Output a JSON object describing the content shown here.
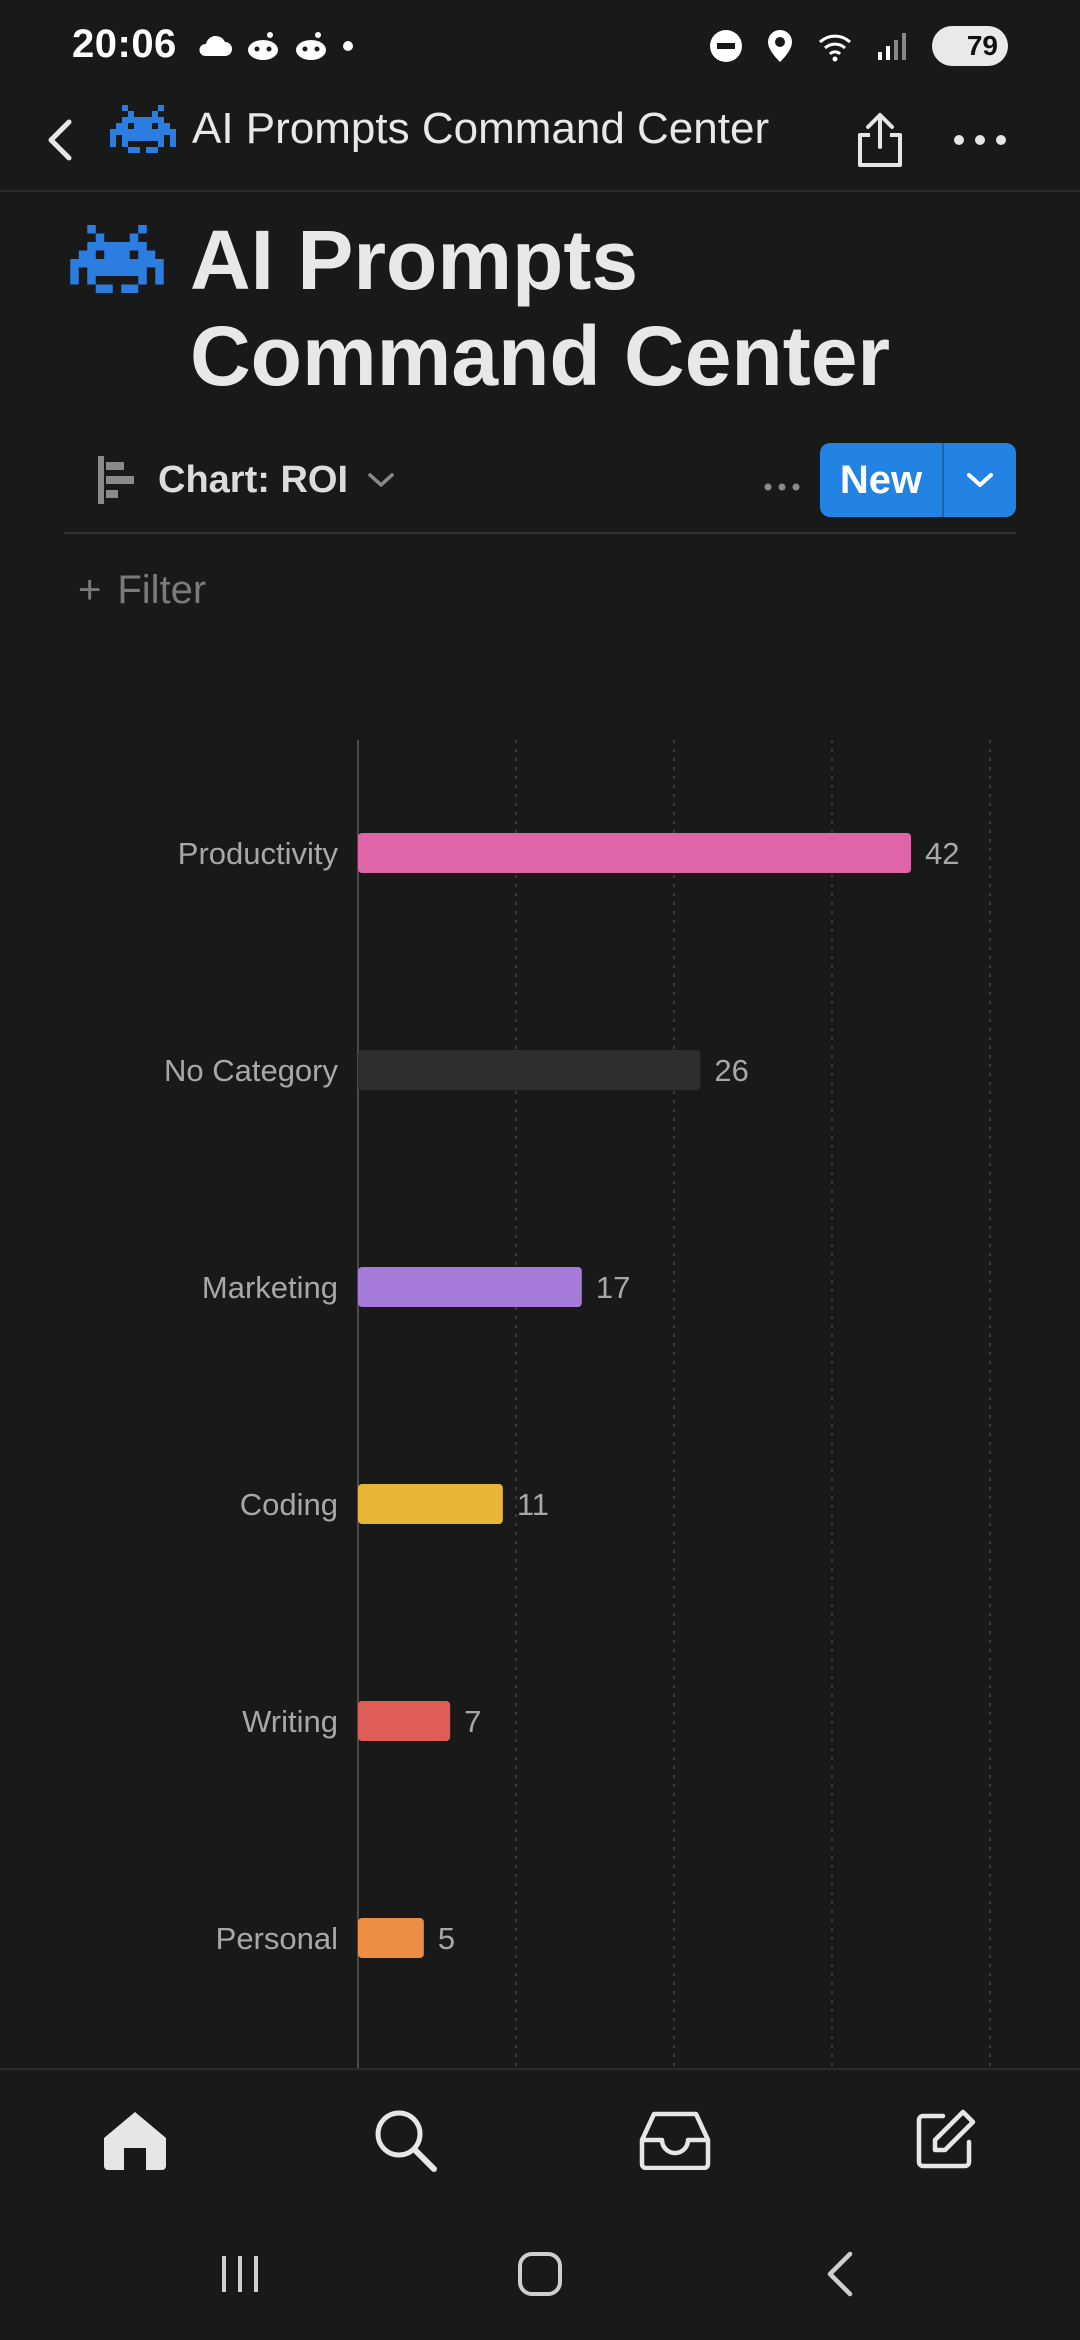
{
  "status": {
    "time": "20:06",
    "battery": "79"
  },
  "nav": {
    "title": "AI Prompts Command Center"
  },
  "page": {
    "title": "AI Prompts Command Center"
  },
  "view": {
    "label": "Chart: ROI",
    "new_label": "New"
  },
  "filter": {
    "label": "Filter",
    "plus": "+"
  },
  "colors": {
    "accent": "#2383e2",
    "bg": "#191919"
  },
  "chart_data": {
    "type": "bar",
    "orientation": "horizontal",
    "categories": [
      "Productivity",
      "No Category",
      "Marketing",
      "Coding",
      "Writing",
      "Personal"
    ],
    "values": [
      42,
      26,
      17,
      11,
      7,
      5
    ],
    "colors": [
      "#e065a8",
      "#2e2e2e",
      "#a57ad9",
      "#e8b534",
      "#e05c57",
      "#ec8f45"
    ],
    "xlim": [
      0,
      48
    ],
    "grid": true,
    "title": "",
    "xlabel": "",
    "ylabel": ""
  }
}
